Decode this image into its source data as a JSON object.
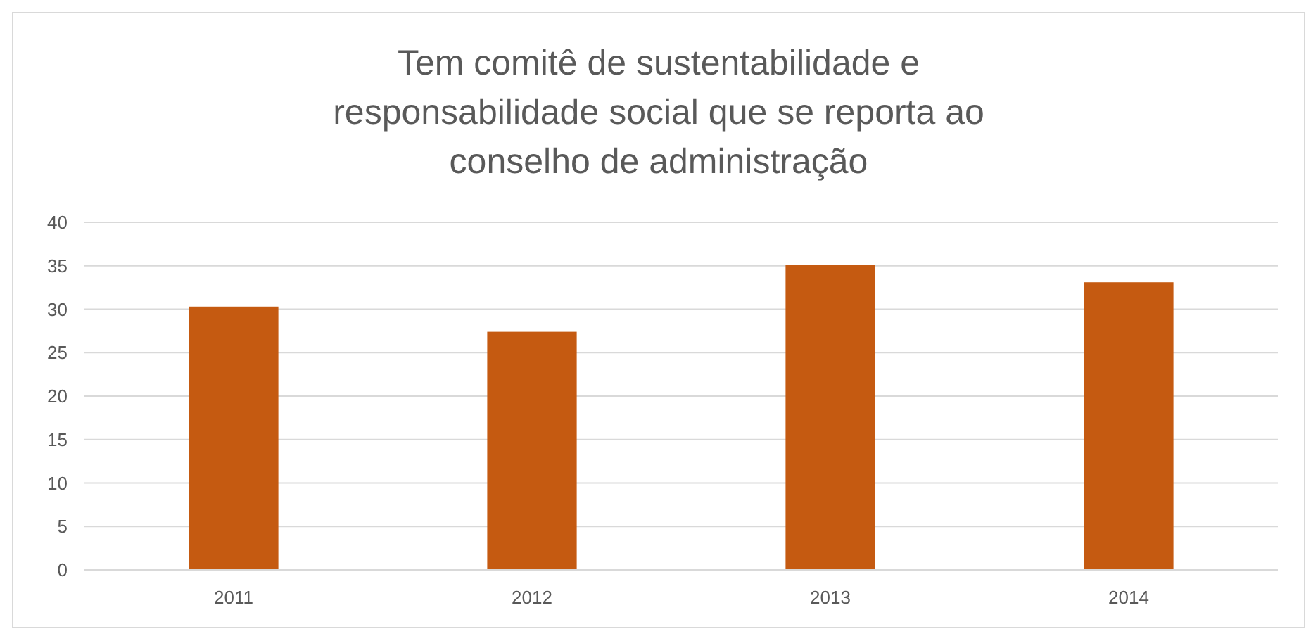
{
  "chart_data": {
    "type": "bar",
    "title": "Tem comitê de sustentabilidade e responsabilidade social que se reporta ao conselho de administração",
    "categories": [
      "2011",
      "2012",
      "2013",
      "2014"
    ],
    "values": [
      30.3,
      27.4,
      35.1,
      33.1
    ],
    "color": "#c55a11",
    "ylim": [
      0,
      40
    ],
    "yticks": [
      0,
      5,
      10,
      15,
      20,
      25,
      30,
      35,
      40
    ],
    "grid": "y"
  }
}
